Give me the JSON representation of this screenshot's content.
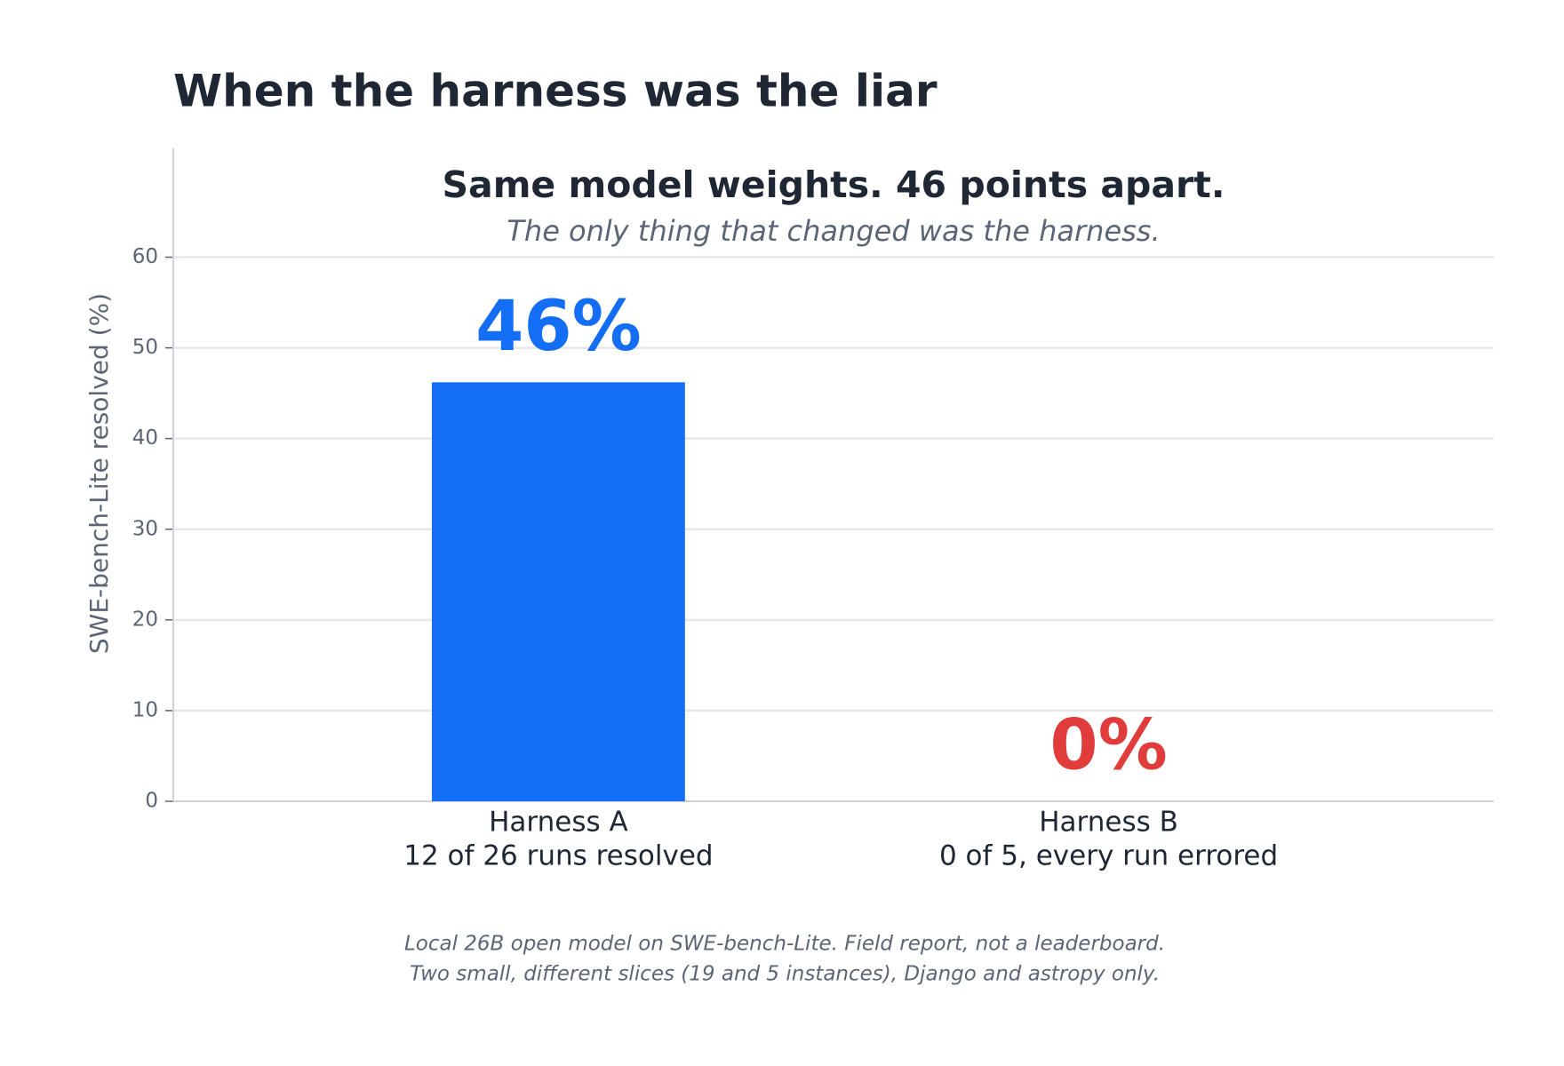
{
  "chart_data": {
    "type": "bar",
    "title": "When the harness was the liar",
    "subtitle": "Same model weights. 46 points apart.",
    "tagline": "The only thing that changed was the harness.",
    "ylabel": "SWE-bench-Lite resolved (%)",
    "categories": [
      "Harness A",
      "Harness B"
    ],
    "category_details": [
      "12 of 26 runs resolved",
      "0 of 5, every run errored"
    ],
    "values": [
      46.2,
      0
    ],
    "value_labels": [
      "46%",
      "0%"
    ],
    "colors": [
      "#146ef5",
      "#e03c3c"
    ],
    "ylim": [
      0,
      72
    ],
    "yticks": [
      0,
      10,
      20,
      30,
      40,
      50,
      60
    ],
    "grid": true,
    "footnote": [
      "Local 26B open model on SWE-bench-Lite. Field report, not a leaderboard.",
      "Two small, different slices (19 and 5 instances), Django and astropy only."
    ]
  }
}
